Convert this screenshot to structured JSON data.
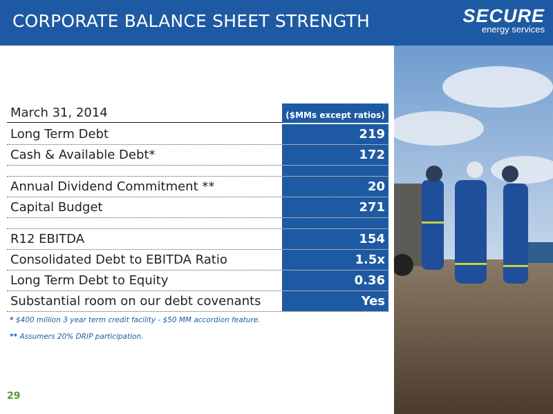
{
  "header": {
    "title": "CORPORATE BALANCE SHEET STRENGTH",
    "logo": {
      "name": "SECURE",
      "tagline": "energy services"
    }
  },
  "table": {
    "header": {
      "label": "March 31, 2014",
      "units": "($MMs except ratios)"
    },
    "rows": [
      [
        "Long Term Debt",
        "219"
      ],
      [
        "Cash & Available Debt*",
        "172"
      ],
      [
        "Annual Dividend Commitment **",
        "20"
      ],
      [
        "Capital Budget",
        "271"
      ],
      [
        "R12 EBITDA",
        "154"
      ],
      [
        "Consolidated Debt to EBITDA Ratio",
        "1.5x"
      ],
      [
        "Long Term Debt to Equity",
        "0.36"
      ],
      [
        "Substantial room on our debt covenants",
        "Yes"
      ]
    ]
  },
  "footnotes": [
    {
      "marker": "*",
      "text": "$400 million 3 year term credit facility - $50 MM accordion feature."
    },
    {
      "marker": "**",
      "text": "Assumers 20% DRIP participation."
    }
  ],
  "page_number": "29"
}
